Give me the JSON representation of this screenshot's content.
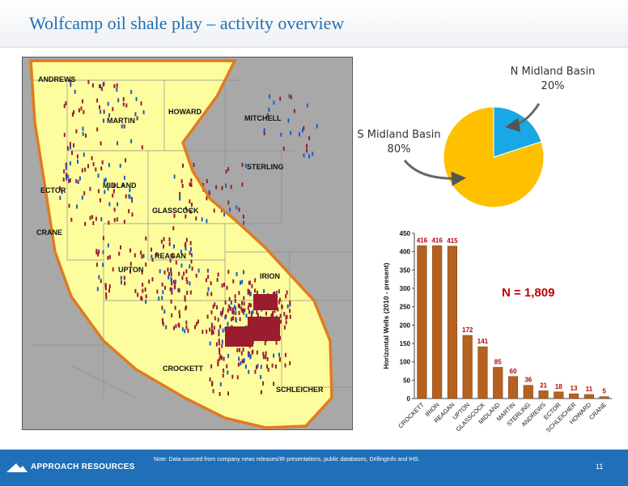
{
  "header": {
    "title": "Wolfcamp oil shale play – activity overview"
  },
  "map": {
    "counties": [
      "ANDREWS",
      "MARTIN",
      "HOWARD",
      "MITCHELL",
      "ECTOR",
      "MIDLAND",
      "STERLING",
      "GLASSCOCK",
      "CRANE",
      "REAGAN",
      "UPTON",
      "IRION",
      "CROCKETT",
      "SCHLEICHER"
    ],
    "colors": {
      "background": "#a8a8a8",
      "play_fill": "#fdfd9e",
      "play_outline": "#e07b20",
      "well_red": "#9b1c2e",
      "well_blue": "#1c5cc8"
    }
  },
  "chart_data": [
    {
      "type": "pie",
      "slices": [
        {
          "label": "N Midland Basin",
          "value": 20,
          "value_label": "20%",
          "color": "#1aa7e6"
        },
        {
          "label": "S Midland Basin",
          "value": 80,
          "value_label": "80%",
          "color": "#ffc000"
        }
      ]
    },
    {
      "type": "bar",
      "categories": [
        "CROCKETT",
        "IRION",
        "REAGAN",
        "UPTON",
        "GLASSCOCK",
        "MIDLAND",
        "MARTIN",
        "STERLING",
        "ANDREWS",
        "ECTOR",
        "SCHLEICHER",
        "HOWARD",
        "CRANE"
      ],
      "values": [
        416,
        416,
        415,
        172,
        141,
        85,
        60,
        36,
        21,
        18,
        13,
        11,
        5
      ],
      "ylabel": "Horizontal Wells (2010 - present)",
      "ylim": [
        0,
        450
      ],
      "yticks": [
        0,
        50,
        100,
        150,
        200,
        250,
        300,
        350,
        400,
        450
      ],
      "bar_color": "#b5611f",
      "label_color": "#c00000",
      "annotation": "N = 1,809"
    }
  ],
  "footer": {
    "company": "APPROACH RESOURCES",
    "note": "Note: Data sourced from  company news releases/IR presentations, public databases, DrillingInfo and IHS.",
    "page": "11"
  }
}
